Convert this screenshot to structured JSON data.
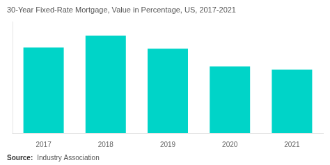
{
  "chart_data": {
    "type": "bar",
    "title": "30-Year Fixed-Rate Mortgage, Value in Percentage, US, 2017-2021",
    "categories": [
      "2017",
      "2018",
      "2019",
      "2020",
      "2021"
    ],
    "values": [
      3.99,
      4.54,
      3.94,
      3.11,
      2.96
    ],
    "color": "#00D4C8",
    "ylim": [
      0,
      5.2
    ],
    "grid": false,
    "tick_labels": "x",
    "annotations": [
      "Source:",
      "Industry Association"
    ]
  }
}
